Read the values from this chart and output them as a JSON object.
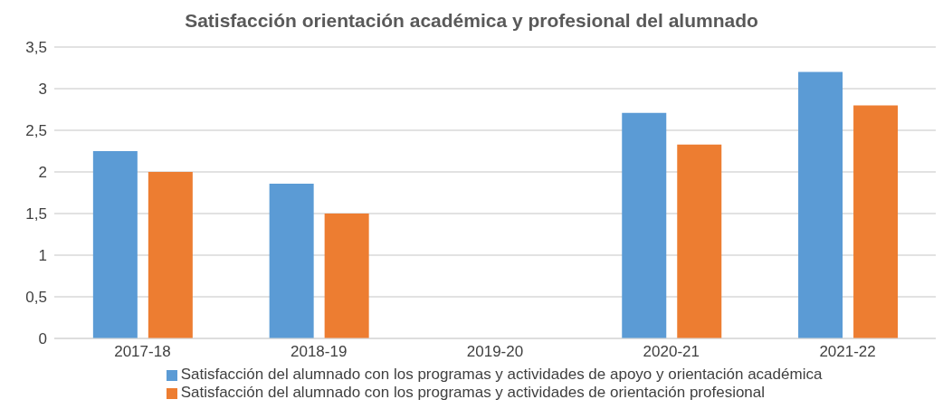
{
  "chart_data": {
    "type": "bar",
    "title": "Satisfacción orientación académica y profesional del alumnado",
    "categories": [
      "2017-18",
      "2018-19",
      "2019-20",
      "2020-21",
      "2021-22"
    ],
    "series": [
      {
        "name": "Satisfacción del alumnado con los programas y actividades de apoyo y orientación académica",
        "color": "#5b9bd5",
        "values": [
          2.25,
          1.86,
          null,
          2.71,
          3.2
        ]
      },
      {
        "name": "Satisfacción del alumnado con los programas y actividades de orientación profesional",
        "color": "#ed7d31",
        "values": [
          2.0,
          1.5,
          null,
          2.33,
          2.8
        ]
      }
    ],
    "ylim": [
      0,
      3.5
    ],
    "yticks": [
      0,
      {
        "value": 0.5,
        "label": "0,5"
      },
      1,
      {
        "value": 1.5,
        "label": "1,5"
      },
      2,
      {
        "value": 2.5,
        "label": "2,5"
      },
      3,
      {
        "value": 3.5,
        "label": "3,5"
      }
    ],
    "grid": "y",
    "legend": "bottom"
  }
}
